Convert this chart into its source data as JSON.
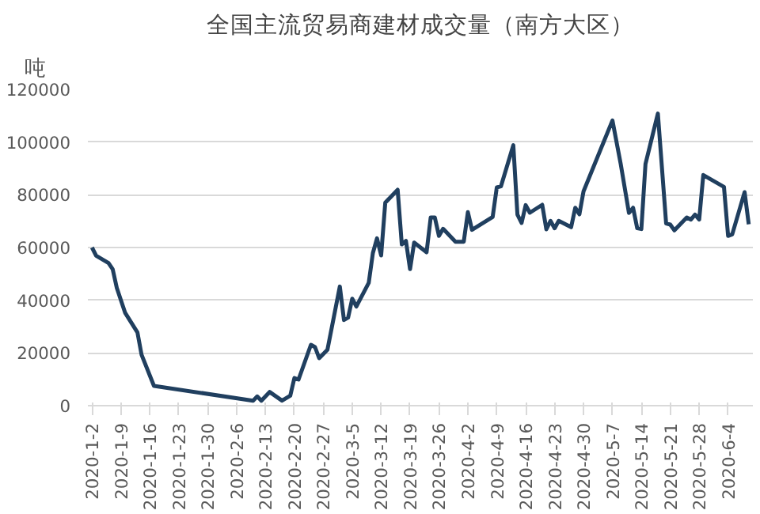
{
  "chart_data": {
    "type": "line",
    "title": "全国主流贸易商建材成交量（南方大区）",
    "ylabel": "吨",
    "x": [
      "2020-01-02",
      "2020-01-03",
      "2020-01-06",
      "2020-01-07",
      "2020-01-08",
      "2020-01-10",
      "2020-01-13",
      "2020-01-14",
      "2020-01-17",
      "2020-02-10",
      "2020-02-11",
      "2020-02-12",
      "2020-02-14",
      "2020-02-17",
      "2020-02-19",
      "2020-02-20",
      "2020-02-21",
      "2020-02-24",
      "2020-02-25",
      "2020-02-26",
      "2020-02-28",
      "2020-03-02",
      "2020-03-03",
      "2020-03-04",
      "2020-03-05",
      "2020-03-06",
      "2020-03-09",
      "2020-03-10",
      "2020-03-11",
      "2020-03-12",
      "2020-03-13",
      "2020-03-16",
      "2020-03-17",
      "2020-03-18",
      "2020-03-19",
      "2020-03-20",
      "2020-03-23",
      "2020-03-24",
      "2020-03-25",
      "2020-03-26",
      "2020-03-27",
      "2020-03-30",
      "2020-04-01",
      "2020-04-02",
      "2020-04-03",
      "2020-04-08",
      "2020-04-09",
      "2020-04-10",
      "2020-04-13",
      "2020-04-14",
      "2020-04-15",
      "2020-04-16",
      "2020-04-17",
      "2020-04-20",
      "2020-04-21",
      "2020-04-22",
      "2020-04-23",
      "2020-04-24",
      "2020-04-27",
      "2020-04-28",
      "2020-04-29",
      "2020-04-30",
      "2020-05-07",
      "2020-05-09",
      "2020-05-11",
      "2020-05-12",
      "2020-05-13",
      "2020-05-14",
      "2020-05-15",
      "2020-05-18",
      "2020-05-20",
      "2020-05-21",
      "2020-05-22",
      "2020-05-25",
      "2020-05-26",
      "2020-05-27",
      "2020-05-28",
      "2020-05-29",
      "2020-06-02",
      "2020-06-03",
      "2020-06-04",
      "2020-06-05",
      "2020-06-08",
      "2020-06-09"
    ],
    "series": [
      {
        "color": "#203f5f",
        "values": [
          60000,
          56900,
          54100,
          51800,
          44700,
          35300,
          27800,
          19300,
          7500,
          1900,
          3500,
          1900,
          5200,
          1900,
          3800,
          10500,
          9900,
          23100,
          22200,
          18000,
          21200,
          45200,
          32500,
          33400,
          40600,
          37600,
          46600,
          57900,
          63500,
          57000,
          77000,
          81900,
          61200,
          62500,
          51800,
          61900,
          58200,
          71400,
          71400,
          64400,
          67100,
          62200,
          62200,
          73400,
          66700,
          71600,
          82800,
          83200,
          98800,
          72500,
          69300,
          76100,
          73200,
          76200,
          66900,
          70100,
          67300,
          70100,
          67700,
          75100,
          72600,
          81300,
          108200,
          91700,
          73100,
          75100,
          67300,
          67000,
          91700,
          110800,
          69100,
          68700,
          66500,
          71400,
          70600,
          72500,
          70600,
          87500,
          83900,
          83000,
          64400,
          65000,
          81000,
          68800
        ]
      }
    ],
    "xlim": [
      "2020-01-01",
      "2020-06-10"
    ],
    "xticks": [
      {
        "value": "2020-01-02",
        "label": "2020-1-2"
      },
      {
        "value": "2020-01-09",
        "label": "2020-1-9"
      },
      {
        "value": "2020-01-16",
        "label": "2020-1-16"
      },
      {
        "value": "2020-01-23",
        "label": "2020-1-23"
      },
      {
        "value": "2020-01-30",
        "label": "2020-1-30"
      },
      {
        "value": "2020-02-06",
        "label": "2020-2-6"
      },
      {
        "value": "2020-02-13",
        "label": "2020-2-13"
      },
      {
        "value": "2020-02-20",
        "label": "2020-2-20"
      },
      {
        "value": "2020-02-27",
        "label": "2020-2-27"
      },
      {
        "value": "2020-03-05",
        "label": "2020-3-5"
      },
      {
        "value": "2020-03-12",
        "label": "2020-3-12"
      },
      {
        "value": "2020-03-19",
        "label": "2020-3-19"
      },
      {
        "value": "2020-03-26",
        "label": "2020-3-26"
      },
      {
        "value": "2020-04-02",
        "label": "2020-4-2"
      },
      {
        "value": "2020-04-09",
        "label": "2020-4-9"
      },
      {
        "value": "2020-04-16",
        "label": "2020-4-16"
      },
      {
        "value": "2020-04-23",
        "label": "2020-4-23"
      },
      {
        "value": "2020-04-30",
        "label": "2020-4-30"
      },
      {
        "value": "2020-05-07",
        "label": "2020-5-7"
      },
      {
        "value": "2020-05-14",
        "label": "2020-5-14"
      },
      {
        "value": "2020-05-21",
        "label": "2020-5-21"
      },
      {
        "value": "2020-05-28",
        "label": "2020-5-28"
      },
      {
        "value": "2020-06-04",
        "label": "2020-6-4"
      }
    ],
    "ylim": [
      0,
      120000
    ],
    "yticks": [
      0,
      20000,
      40000,
      60000,
      80000,
      100000,
      120000
    ],
    "grid": "y",
    "marker": "none",
    "line_style": "solid"
  }
}
